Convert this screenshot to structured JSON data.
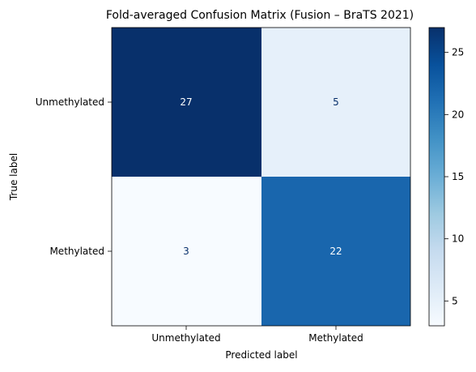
{
  "chart_data": {
    "type": "heatmap",
    "title": "Fold-averaged Confusion Matrix (Fusion – BraTS 2021)",
    "xlabel": "Predicted label",
    "ylabel": "True label",
    "x_categories": [
      "Unmethylated",
      "Methylated"
    ],
    "y_categories": [
      "Unmethylated",
      "Methylated"
    ],
    "values": [
      [
        27,
        5
      ],
      [
        3,
        22
      ]
    ],
    "colormap": "Blues",
    "color_range": [
      3,
      27
    ],
    "colorbar_ticks": [
      "5",
      "10",
      "15",
      "20",
      "25"
    ],
    "colorbar_tick_values": [
      5,
      10,
      15,
      20,
      25
    ],
    "colors": {
      "low": "#f7fbff",
      "high": "#08306b",
      "text_dark_cell": "#ffffff",
      "text_light_cell": "#08306b"
    }
  }
}
